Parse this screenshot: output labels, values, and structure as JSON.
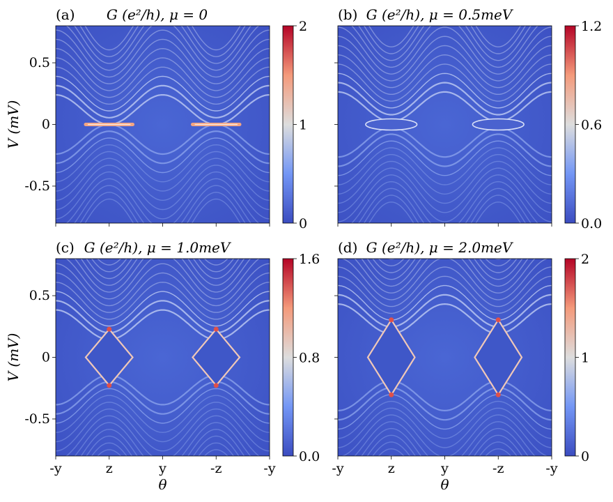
{
  "chart_data": [
    {
      "type": "heatmap",
      "panel_label": "(a)",
      "title": "G (e²/h), μ = 0",
      "mu_meV": 0,
      "ylabel": "V (mV)",
      "xlabel": "",
      "x_ticks": [
        "-y",
        "z",
        "y",
        "-z",
        "-y"
      ],
      "y_ticks": [
        "0.5",
        "0",
        "-0.5"
      ],
      "y_tick_values": [
        0.5,
        0,
        -0.5
      ],
      "ylim": [
        -0.8,
        0.8
      ],
      "colorbar": {
        "ticks": [
          "0",
          "1",
          "2"
        ],
        "tick_values": [
          0,
          1,
          2
        ],
        "range": [
          0,
          2
        ]
      },
      "colormap": [
        "#3b4cc0",
        "#dddddd",
        "#b40426"
      ],
      "gap_meV": 0.0,
      "zero_bias_peak": true
    },
    {
      "type": "heatmap",
      "panel_label": "(b)",
      "title": "G (e²/h), μ = 0.5meV",
      "mu_meV": 0.5,
      "ylabel": "",
      "xlabel": "",
      "x_ticks": [
        "-y",
        "z",
        "y",
        "-z",
        "-y"
      ],
      "y_ticks": [
        "0.5",
        "0",
        "-0.5"
      ],
      "y_tick_values": [
        0.5,
        0,
        -0.5
      ],
      "ylim": [
        -0.8,
        0.8
      ],
      "colorbar": {
        "ticks": [
          "0.0",
          "0.6",
          "1.2"
        ],
        "tick_values": [
          0.0,
          0.6,
          1.2
        ],
        "range": [
          0,
          1.2
        ]
      },
      "colormap": [
        "#3b4cc0",
        "#dddddd",
        "#b40426"
      ],
      "gap_meV": 0.04,
      "zero_bias_peak": false
    },
    {
      "type": "heatmap",
      "panel_label": "(c)",
      "title": "G (e²/h), μ = 1.0meV",
      "mu_meV": 1.0,
      "ylabel": "V (mV)",
      "xlabel": "θ",
      "x_ticks": [
        "-y",
        "z",
        "y",
        "-z",
        "-y"
      ],
      "y_ticks": [
        "0.5",
        "0",
        "-0.5"
      ],
      "y_tick_values": [
        0.5,
        0,
        -0.5
      ],
      "ylim": [
        -0.8,
        0.8
      ],
      "colorbar": {
        "ticks": [
          "0.0",
          "0.8",
          "1.6"
        ],
        "tick_values": [
          0.0,
          0.8,
          1.6
        ],
        "range": [
          0,
          1.6
        ]
      },
      "colormap": [
        "#3b4cc0",
        "#dddddd",
        "#b40426"
      ],
      "gap_meV": 0.24,
      "zero_bias_peak": false
    },
    {
      "type": "heatmap",
      "panel_label": "(d)",
      "title": "G (e²/h), μ = 2.0meV",
      "mu_meV": 2.0,
      "ylabel": "",
      "xlabel": "θ",
      "x_ticks": [
        "-y",
        "z",
        "y",
        "-z",
        "-y"
      ],
      "y_ticks": [
        "0.5",
        "0",
        "-0.5"
      ],
      "y_tick_values": [
        0.5,
        0,
        -0.5
      ],
      "ylim": [
        -0.8,
        0.8
      ],
      "colorbar": {
        "ticks": [
          "0",
          "1",
          "2"
        ],
        "tick_values": [
          0,
          1,
          2
        ],
        "range": [
          0,
          2
        ]
      },
      "colormap": [
        "#3b4cc0",
        "#dddddd",
        "#b40426"
      ],
      "gap_meV": 0.32,
      "zero_bias_peak": false
    }
  ]
}
